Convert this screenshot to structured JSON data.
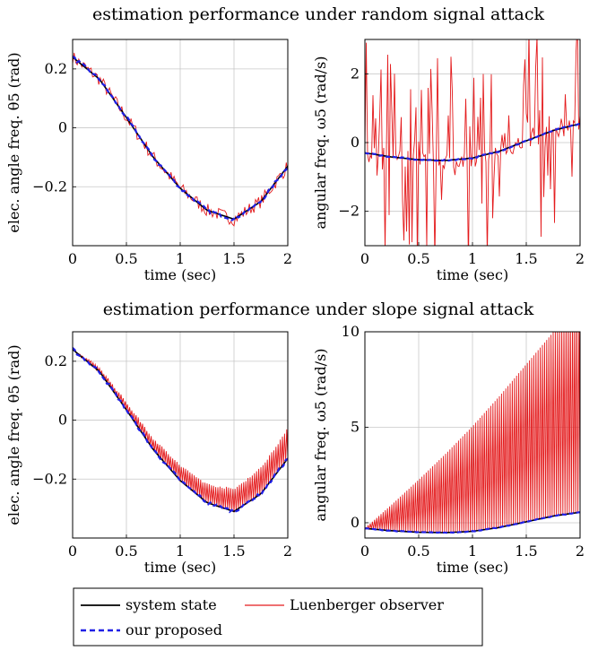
{
  "section_titles": [
    "estimation performance under random signal attack",
    "estimation performance under slope signal attack"
  ],
  "legend": {
    "entries": [
      {
        "label": "system state",
        "color": "#000000",
        "style": "solid"
      },
      {
        "label": "Luenberger observer",
        "color": "#e41a1c",
        "style": "solid"
      },
      {
        "label": "our proposed",
        "color": "#1f1fe6",
        "style": "dashed"
      }
    ]
  },
  "chart_data": [
    {
      "type": "line",
      "attack": "random",
      "xlabel": "time (sec)",
      "ylabel": "elec. angle freq. θ5 (rad)",
      "xlim": [
        0,
        2
      ],
      "ylim": [
        -0.4,
        0.3
      ],
      "xticks": [
        0,
        0.5,
        1,
        1.5,
        2
      ],
      "xtick_labels": [
        "0",
        "0.5",
        "1",
        "1.5",
        "2"
      ],
      "yticks": [
        -0.2,
        0,
        0.2
      ],
      "ytick_labels": [
        "−0.2",
        "0",
        "0.2"
      ],
      "grid": true,
      "x": [
        0,
        0.25,
        0.5,
        0.75,
        1.0,
        1.25,
        1.5,
        1.75,
        2.0
      ],
      "series": [
        {
          "name": "system state",
          "values": [
            0.24,
            0.165,
            0.035,
            -0.1,
            -0.205,
            -0.28,
            -0.31,
            -0.25,
            -0.13
          ]
        },
        {
          "name": "our proposed",
          "values": [
            0.24,
            0.165,
            0.035,
            -0.1,
            -0.205,
            -0.28,
            -0.31,
            -0.25,
            -0.13
          ]
        },
        {
          "name": "Luenberger observer",
          "values": [
            0.24,
            0.165,
            0.035,
            -0.1,
            -0.205,
            -0.28,
            -0.31,
            -0.25,
            -0.13
          ],
          "noise": "random ±0.02"
        }
      ]
    },
    {
      "type": "line",
      "attack": "random",
      "xlabel": "time (sec)",
      "ylabel": "angular freq. ω5 (rad/s)",
      "xlim": [
        0,
        2
      ],
      "ylim": [
        -3,
        3
      ],
      "xticks": [
        0,
        0.5,
        1,
        1.5,
        2
      ],
      "xtick_labels": [
        "0",
        "0.5",
        "1",
        "1.5",
        "2"
      ],
      "yticks": [
        -2,
        0,
        2
      ],
      "ytick_labels": [
        "−2",
        "0",
        "2"
      ],
      "grid": true,
      "x": [
        0,
        0.25,
        0.5,
        0.75,
        1.0,
        1.25,
        1.5,
        1.75,
        2.0
      ],
      "series": [
        {
          "name": "system state",
          "values": [
            -0.3,
            -0.42,
            -0.5,
            -0.52,
            -0.45,
            -0.25,
            0.05,
            0.35,
            0.55
          ]
        },
        {
          "name": "our proposed",
          "values": [
            -0.3,
            -0.42,
            -0.5,
            -0.52,
            -0.45,
            -0.25,
            0.05,
            0.35,
            0.55
          ]
        },
        {
          "name": "Luenberger observer",
          "values": [
            -0.3,
            -0.42,
            -0.5,
            -0.52,
            -0.45,
            -0.25,
            0.05,
            0.35,
            0.55
          ],
          "noise": "random spikes up to ±3"
        }
      ]
    },
    {
      "type": "line",
      "attack": "slope",
      "xlabel": "time (sec)",
      "ylabel": "elec. angle freq. θ5 (rad)",
      "xlim": [
        0,
        2
      ],
      "ylim": [
        -0.4,
        0.3
      ],
      "xticks": [
        0,
        0.5,
        1,
        1.5,
        2
      ],
      "xtick_labels": [
        "0",
        "0.5",
        "1",
        "1.5",
        "2"
      ],
      "yticks": [
        -0.2,
        0,
        0.2
      ],
      "ytick_labels": [
        "−0.2",
        "0",
        "0.2"
      ],
      "grid": true,
      "x": [
        0,
        0.25,
        0.5,
        0.75,
        1.0,
        1.25,
        1.5,
        1.75,
        2.0
      ],
      "series": [
        {
          "name": "system state",
          "values": [
            0.24,
            0.165,
            0.035,
            -0.1,
            -0.205,
            -0.28,
            -0.31,
            -0.25,
            -0.13
          ]
        },
        {
          "name": "our proposed",
          "values": [
            0.24,
            0.165,
            0.035,
            -0.1,
            -0.205,
            -0.28,
            -0.31,
            -0.25,
            -0.13
          ]
        },
        {
          "name": "Luenberger observer",
          "values": [
            0.24,
            0.165,
            0.035,
            -0.1,
            -0.205,
            -0.28,
            -0.31,
            -0.25,
            -0.13
          ],
          "noise": "oscillation growing to +0.1"
        }
      ]
    },
    {
      "type": "line",
      "attack": "slope",
      "xlabel": "time (sec)",
      "ylabel": "angular freq. ω5 (rad/s)",
      "xlim": [
        0,
        2
      ],
      "ylim": [
        -0.8,
        10
      ],
      "xticks": [
        0,
        0.5,
        1,
        1.5,
        2
      ],
      "xtick_labels": [
        "0",
        "0.5",
        "1",
        "1.5",
        "2"
      ],
      "yticks": [
        0,
        5,
        10
      ],
      "ytick_labels": [
        "0",
        "5",
        "10"
      ],
      "grid": true,
      "x": [
        0,
        0.25,
        0.5,
        0.75,
        1.0,
        1.25,
        1.5,
        1.75,
        2.0
      ],
      "series": [
        {
          "name": "system state",
          "values": [
            -0.3,
            -0.42,
            -0.5,
            -0.52,
            -0.45,
            -0.25,
            0.05,
            0.35,
            0.55
          ]
        },
        {
          "name": "our proposed",
          "values": [
            -0.3,
            -0.42,
            -0.5,
            -0.52,
            -0.45,
            -0.25,
            0.05,
            0.35,
            0.55
          ]
        },
        {
          "name": "Luenberger observer",
          "values": [
            -0.3,
            -0.42,
            -0.5,
            -0.52,
            -0.45,
            -0.25,
            0.05,
            0.35,
            0.55
          ],
          "noise": "oscillation growing linearly to 10"
        }
      ]
    }
  ]
}
